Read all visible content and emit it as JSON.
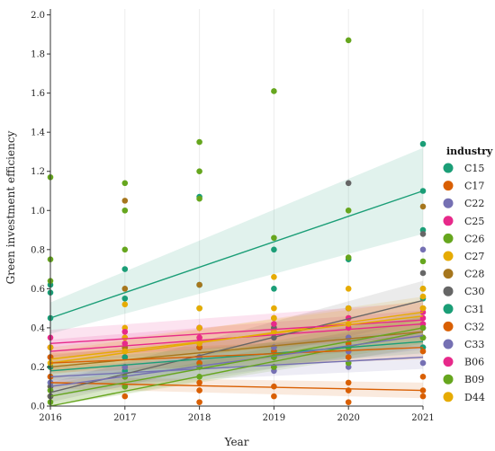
{
  "chart_data": {
    "type": "scatter",
    "xlabel": "Year",
    "ylabel": "Green investment efficiency",
    "x_ticks": [
      2016,
      2017,
      2018,
      2019,
      2020,
      2021
    ],
    "y_ticks": [
      0.0,
      0.2,
      0.4,
      0.6,
      0.8,
      1.0,
      1.2,
      1.4,
      1.6,
      1.8,
      2.0
    ],
    "y_tick_labels": [
      "0.0",
      "0.2",
      "0.4",
      "0.6",
      "0.8",
      "1.0",
      "1.2",
      "1.4",
      "1.6",
      "1.8",
      "2.0"
    ],
    "xlim": [
      2016,
      2021
    ],
    "ylim": [
      0,
      2.03
    ],
    "legend": {
      "title": "industry",
      "position": "right"
    },
    "series": [
      {
        "name": "C15",
        "color": "#1b9e77",
        "trend": [
          0.45,
          1.1
        ],
        "band": [
          0.08,
          0.22
        ],
        "points": [
          [
            2016,
            0.45
          ],
          [
            2016,
            0.58
          ],
          [
            2016,
            0.62
          ],
          [
            2017,
            0.7
          ],
          [
            2017,
            0.55
          ],
          [
            2018,
            1.07
          ],
          [
            2018,
            0.62
          ],
          [
            2019,
            0.8
          ],
          [
            2019,
            0.6
          ],
          [
            2020,
            0.75
          ],
          [
            2020,
            0.5
          ],
          [
            2021,
            1.34
          ],
          [
            2021,
            1.1
          ],
          [
            2021,
            0.9
          ],
          [
            2021,
            0.55
          ]
        ]
      },
      {
        "name": "C17",
        "color": "#d95f02",
        "trend": [
          0.12,
          0.08
        ],
        "band": [
          0.03,
          0.04
        ],
        "points": [
          [
            2016,
            0.1
          ],
          [
            2016,
            0.05
          ],
          [
            2016,
            0.2
          ],
          [
            2017,
            0.1
          ],
          [
            2017,
            0.15
          ],
          [
            2017,
            0.05
          ],
          [
            2018,
            0.08
          ],
          [
            2018,
            0.12
          ],
          [
            2018,
            0.02
          ],
          [
            2019,
            0.1
          ],
          [
            2019,
            0.05
          ],
          [
            2020,
            0.08
          ],
          [
            2020,
            0.02
          ],
          [
            2020,
            0.12
          ],
          [
            2021,
            0.08
          ],
          [
            2021,
            0.05
          ],
          [
            2021,
            0.15
          ]
        ]
      },
      {
        "name": "C22",
        "color": "#7570b3",
        "trend": [
          0.15,
          0.25
        ],
        "band": [
          0.05,
          0.06
        ],
        "points": [
          [
            2016,
            0.15
          ],
          [
            2016,
            0.25
          ],
          [
            2017,
            0.2
          ],
          [
            2017,
            0.1
          ],
          [
            2018,
            0.22
          ],
          [
            2018,
            0.3
          ],
          [
            2019,
            0.25
          ],
          [
            2019,
            0.18
          ],
          [
            2020,
            0.28
          ],
          [
            2020,
            0.2
          ],
          [
            2021,
            0.3
          ],
          [
            2021,
            0.22
          ]
        ]
      },
      {
        "name": "C25",
        "color": "#e7298a",
        "trend": [
          0.28,
          0.42
        ],
        "band": [
          0.06,
          0.07
        ],
        "points": [
          [
            2016,
            0.3
          ],
          [
            2016,
            0.2
          ],
          [
            2017,
            0.35
          ],
          [
            2017,
            0.25
          ],
          [
            2018,
            0.4
          ],
          [
            2018,
            0.3
          ],
          [
            2019,
            0.38
          ],
          [
            2019,
            0.28
          ],
          [
            2020,
            0.42
          ],
          [
            2020,
            0.3
          ],
          [
            2021,
            0.45
          ],
          [
            2021,
            0.35
          ]
        ]
      },
      {
        "name": "C26",
        "color": "#66a61e",
        "trend": [
          0.0,
          0.38
        ],
        "band": [
          0.07,
          0.08
        ],
        "points": [
          [
            2016,
            1.17
          ],
          [
            2016,
            0.75
          ],
          [
            2016,
            0.64
          ],
          [
            2016,
            0.05
          ],
          [
            2017,
            1.14
          ],
          [
            2017,
            1.0
          ],
          [
            2017,
            0.8
          ],
          [
            2017,
            0.3
          ],
          [
            2018,
            1.35
          ],
          [
            2018,
            1.2
          ],
          [
            2018,
            1.06
          ],
          [
            2018,
            0.5
          ],
          [
            2019,
            1.61
          ],
          [
            2019,
            0.86
          ],
          [
            2019,
            0.4
          ],
          [
            2020,
            1.87
          ],
          [
            2020,
            1.0
          ],
          [
            2020,
            0.76
          ],
          [
            2020,
            0.3
          ],
          [
            2021,
            0.74
          ],
          [
            2021,
            0.6
          ],
          [
            2021,
            0.4
          ]
        ]
      },
      {
        "name": "C27",
        "color": "#e6ab02",
        "trend": [
          0.22,
          0.48
        ],
        "band": [
          0.06,
          0.08
        ],
        "points": [
          [
            2016,
            0.3
          ],
          [
            2016,
            0.2
          ],
          [
            2017,
            0.52
          ],
          [
            2017,
            0.4
          ],
          [
            2018,
            0.5
          ],
          [
            2018,
            0.35
          ],
          [
            2019,
            0.66
          ],
          [
            2019,
            0.5
          ],
          [
            2020,
            0.6
          ],
          [
            2020,
            0.45
          ],
          [
            2021,
            0.56
          ],
          [
            2021,
            0.5
          ]
        ]
      },
      {
        "name": "C28",
        "color": "#a6761d",
        "trend": [
          0.2,
          0.38
        ],
        "band": [
          0.06,
          0.07
        ],
        "points": [
          [
            2016,
            0.25
          ],
          [
            2016,
            0.15
          ],
          [
            2017,
            1.05
          ],
          [
            2017,
            0.6
          ],
          [
            2017,
            0.3
          ],
          [
            2018,
            0.62
          ],
          [
            2018,
            0.4
          ],
          [
            2019,
            0.45
          ],
          [
            2019,
            0.3
          ],
          [
            2020,
            0.5
          ],
          [
            2020,
            0.35
          ],
          [
            2021,
            1.02
          ],
          [
            2021,
            0.5
          ]
        ]
      },
      {
        "name": "C30",
        "color": "#666666",
        "trend": [
          0.07,
          0.54
        ],
        "band": [
          0.05,
          0.1
        ],
        "points": [
          [
            2016,
            0.1
          ],
          [
            2016,
            0.05
          ],
          [
            2017,
            0.2
          ],
          [
            2017,
            0.15
          ],
          [
            2018,
            0.3
          ],
          [
            2018,
            0.25
          ],
          [
            2019,
            0.4
          ],
          [
            2019,
            0.35
          ],
          [
            2020,
            1.14
          ],
          [
            2020,
            0.5
          ],
          [
            2021,
            0.88
          ],
          [
            2021,
            0.68
          ]
        ]
      },
      {
        "name": "C31",
        "color": "#1b9e77",
        "trend": [
          0.18,
          0.33
        ],
        "band": [
          0.05,
          0.06
        ],
        "points": [
          [
            2016,
            0.2
          ],
          [
            2016,
            0.12
          ],
          [
            2017,
            0.25
          ],
          [
            2017,
            0.18
          ],
          [
            2018,
            0.3
          ],
          [
            2018,
            0.2
          ],
          [
            2019,
            0.28
          ],
          [
            2019,
            0.2
          ],
          [
            2020,
            0.32
          ],
          [
            2020,
            0.25
          ],
          [
            2021,
            0.35
          ],
          [
            2021,
            0.3
          ]
        ]
      },
      {
        "name": "C32",
        "color": "#d95f02",
        "trend": [
          0.22,
          0.3
        ],
        "band": [
          0.05,
          0.06
        ],
        "points": [
          [
            2016,
            0.25
          ],
          [
            2016,
            0.15
          ],
          [
            2017,
            0.28
          ],
          [
            2017,
            0.2
          ],
          [
            2018,
            0.3
          ],
          [
            2018,
            0.22
          ],
          [
            2019,
            0.28
          ],
          [
            2019,
            0.2
          ],
          [
            2020,
            0.32
          ],
          [
            2020,
            0.25
          ],
          [
            2021,
            0.35
          ],
          [
            2021,
            0.28
          ]
        ]
      },
      {
        "name": "C33",
        "color": "#7570b3",
        "trend": [
          0.1,
          0.36
        ],
        "band": [
          0.05,
          0.07
        ],
        "points": [
          [
            2016,
            0.12
          ],
          [
            2016,
            0.08
          ],
          [
            2017,
            0.2
          ],
          [
            2017,
            0.15
          ],
          [
            2018,
            0.25
          ],
          [
            2018,
            0.2
          ],
          [
            2019,
            0.3
          ],
          [
            2019,
            0.25
          ],
          [
            2020,
            0.35
          ],
          [
            2020,
            0.28
          ],
          [
            2021,
            0.8
          ],
          [
            2021,
            0.4
          ]
        ]
      },
      {
        "name": "B06",
        "color": "#e7298a",
        "trend": [
          0.32,
          0.44
        ],
        "band": [
          0.07,
          0.09
        ],
        "points": [
          [
            2016,
            0.35
          ],
          [
            2016,
            0.3
          ],
          [
            2017,
            0.38
          ],
          [
            2017,
            0.32
          ],
          [
            2018,
            0.4
          ],
          [
            2018,
            0.35
          ],
          [
            2019,
            0.42
          ],
          [
            2019,
            0.38
          ],
          [
            2020,
            0.45
          ],
          [
            2020,
            0.4
          ],
          [
            2021,
            0.48
          ],
          [
            2021,
            0.42
          ]
        ]
      },
      {
        "name": "B09",
        "color": "#66a61e",
        "trend": [
          0.05,
          0.4
        ],
        "band": [
          0.06,
          0.08
        ],
        "points": [
          [
            2016,
            0.08
          ],
          [
            2016,
            0.02
          ],
          [
            2017,
            0.15
          ],
          [
            2017,
            0.1
          ],
          [
            2018,
            0.2
          ],
          [
            2018,
            0.15
          ],
          [
            2019,
            0.25
          ],
          [
            2019,
            0.2
          ],
          [
            2020,
            0.3
          ],
          [
            2020,
            0.22
          ],
          [
            2021,
            0.4
          ],
          [
            2021,
            0.35
          ]
        ]
      },
      {
        "name": "D44",
        "color": "#e6ab02",
        "trend": [
          0.24,
          0.46
        ],
        "band": [
          0.06,
          0.08
        ],
        "points": [
          [
            2016,
            0.3
          ],
          [
            2016,
            0.22
          ],
          [
            2017,
            0.35
          ],
          [
            2017,
            0.28
          ],
          [
            2018,
            0.4
          ],
          [
            2018,
            0.32
          ],
          [
            2019,
            0.45
          ],
          [
            2019,
            0.38
          ],
          [
            2020,
            0.5
          ],
          [
            2020,
            0.42
          ],
          [
            2021,
            0.6
          ],
          [
            2021,
            0.5
          ]
        ]
      }
    ]
  }
}
